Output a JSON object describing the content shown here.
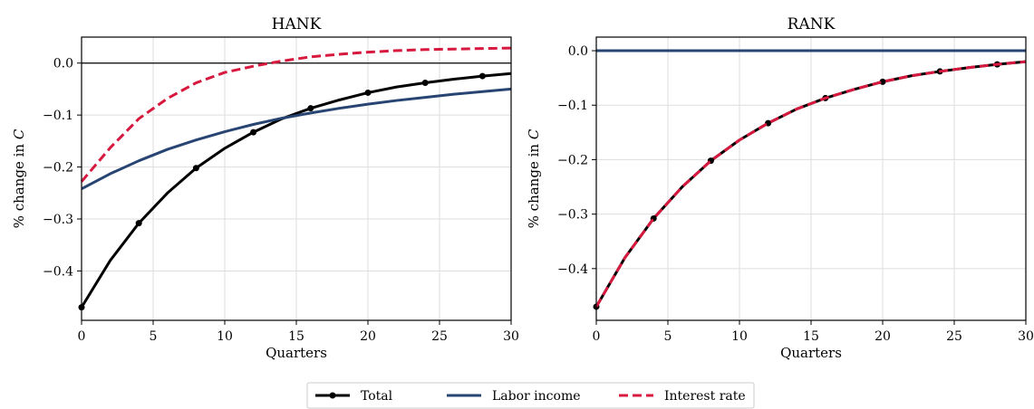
{
  "colors": {
    "total": "#000000",
    "labor_income": "#274472",
    "interest_rate": "#d7193f",
    "grid": "#dddddd",
    "zero_line_left": "#000000",
    "zero_line_right": "#274472"
  },
  "legend": {
    "position": "bottom-center",
    "entries": [
      "Total",
      "Labor income",
      "Interest rate"
    ]
  },
  "chart_data": [
    {
      "type": "line",
      "title": "HANK",
      "xlabel": "Quarters",
      "ylabel": "% change in",
      "ylabel_var": "C",
      "xlim": [
        0,
        30
      ],
      "ylim": [
        -0.495,
        0.05
      ],
      "xticks": [
        0,
        5,
        10,
        15,
        20,
        25,
        30
      ],
      "xtick_labels": [
        "0",
        "5",
        "10",
        "15",
        "20",
        "25",
        "30"
      ],
      "yticks": [
        0.0,
        -0.1,
        -0.2,
        -0.3,
        -0.4
      ],
      "ytick_labels": [
        "0.0",
        "−0.1",
        "−0.2",
        "−0.3",
        "−0.4"
      ],
      "grid": true,
      "x": [
        0,
        2,
        4,
        6,
        8,
        10,
        12,
        14,
        16,
        18,
        20,
        22,
        24,
        26,
        28,
        30
      ],
      "series": [
        {
          "name": "Total",
          "style": "solid-marker",
          "values": [
            -0.47,
            -0.38,
            -0.308,
            -0.25,
            -0.202,
            -0.164,
            -0.133,
            -0.107,
            -0.087,
            -0.071,
            -0.057,
            -0.046,
            -0.038,
            -0.031,
            -0.025,
            -0.02
          ],
          "marker_x": [
            0,
            4,
            8,
            12,
            16,
            20,
            24,
            28
          ],
          "marker_y": [
            -0.47,
            -0.308,
            -0.202,
            -0.133,
            -0.087,
            -0.057,
            -0.038,
            -0.025
          ]
        },
        {
          "name": "Labor income",
          "style": "solid",
          "values": [
            -0.242,
            -0.213,
            -0.188,
            -0.166,
            -0.148,
            -0.132,
            -0.118,
            -0.106,
            -0.096,
            -0.087,
            -0.079,
            -0.072,
            -0.066,
            -0.06,
            -0.055,
            -0.05
          ]
        },
        {
          "name": "Interest rate",
          "style": "dashed",
          "values": [
            -0.228,
            -0.163,
            -0.107,
            -0.068,
            -0.038,
            -0.018,
            -0.006,
            0.004,
            0.012,
            0.017,
            0.021,
            0.024,
            0.026,
            0.027,
            0.028,
            0.029
          ]
        }
      ]
    },
    {
      "type": "line",
      "title": "RANK",
      "xlabel": "Quarters",
      "ylabel": "% change in",
      "ylabel_var": "C",
      "xlim": [
        0,
        30
      ],
      "ylim": [
        -0.495,
        0.025
      ],
      "xticks": [
        0,
        5,
        10,
        15,
        20,
        25,
        30
      ],
      "xtick_labels": [
        "0",
        "5",
        "10",
        "15",
        "20",
        "25",
        "30"
      ],
      "yticks": [
        0.0,
        -0.1,
        -0.2,
        -0.3,
        -0.4
      ],
      "ytick_labels": [
        "0.0",
        "−0.1",
        "−0.2",
        "−0.3",
        "−0.4"
      ],
      "grid": true,
      "x": [
        0,
        2,
        4,
        6,
        8,
        10,
        12,
        14,
        16,
        18,
        20,
        22,
        24,
        26,
        28,
        30
      ],
      "series": [
        {
          "name": "Labor income",
          "style": "solid",
          "values": [
            0,
            0,
            0,
            0,
            0,
            0,
            0,
            0,
            0,
            0,
            0,
            0,
            0,
            0,
            0,
            0
          ]
        },
        {
          "name": "Total",
          "style": "solid-marker",
          "values": [
            -0.47,
            -0.38,
            -0.308,
            -0.25,
            -0.202,
            -0.164,
            -0.133,
            -0.107,
            -0.087,
            -0.071,
            -0.057,
            -0.046,
            -0.038,
            -0.031,
            -0.025,
            -0.02
          ],
          "marker_x": [
            0,
            4,
            8,
            12,
            16,
            20,
            24,
            28
          ],
          "marker_y": [
            -0.47,
            -0.308,
            -0.202,
            -0.133,
            -0.087,
            -0.057,
            -0.038,
            -0.025
          ]
        },
        {
          "name": "Interest rate",
          "style": "dashed",
          "values": [
            -0.47,
            -0.38,
            -0.308,
            -0.25,
            -0.202,
            -0.164,
            -0.133,
            -0.107,
            -0.087,
            -0.071,
            -0.057,
            -0.046,
            -0.038,
            -0.031,
            -0.025,
            -0.02
          ]
        }
      ]
    }
  ]
}
